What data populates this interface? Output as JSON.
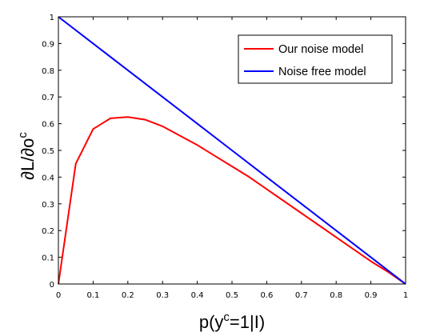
{
  "chart_data": {
    "type": "line",
    "title": "",
    "xlabel": {
      "base": "p(y",
      "sup": "c",
      "rest": "=1|I)"
    },
    "ylabel": {
      "base": "∂L/∂o",
      "sup": "c"
    },
    "xlim": [
      0,
      1
    ],
    "ylim": [
      0,
      1
    ],
    "xticks": [
      0,
      0.1,
      0.2,
      0.3,
      0.4,
      0.5,
      0.6,
      0.7,
      0.8,
      0.9,
      1
    ],
    "yticks": [
      0,
      0.1,
      0.2,
      0.3,
      0.4,
      0.5,
      0.6,
      0.7,
      0.8,
      0.9,
      1
    ],
    "xtick_labels": [
      "0",
      "0.1",
      "0.2",
      "0.3",
      "0.4",
      "0.5",
      "0.6",
      "0.7",
      "0.8",
      "0.9",
      "1"
    ],
    "ytick_labels": [
      "0",
      "0.1",
      "0.2",
      "0.3",
      "0.4",
      "0.5",
      "0.6",
      "0.7",
      "0.8",
      "0.9",
      "1"
    ],
    "grid": false,
    "legend_position": "top-right",
    "series": [
      {
        "name": "Our noise model",
        "color": "#ff0000",
        "x": [
          0,
          0.05,
          0.1,
          0.15,
          0.2,
          0.25,
          0.3,
          0.35,
          0.4,
          0.45,
          0.5,
          0.55,
          0.6,
          0.65,
          0.7,
          0.75,
          0.8,
          0.85,
          0.9,
          0.95,
          1
        ],
        "y": [
          0,
          0.45,
          0.58,
          0.62,
          0.625,
          0.615,
          0.59,
          0.555,
          0.52,
          0.48,
          0.44,
          0.4,
          0.355,
          0.31,
          0.265,
          0.22,
          0.175,
          0.13,
          0.085,
          0.045,
          0
        ]
      },
      {
        "name": "Noise free model",
        "color": "#0000ff",
        "x": [
          0,
          0.1,
          0.2,
          0.3,
          0.4,
          0.5,
          0.6,
          0.7,
          0.8,
          0.9,
          1
        ],
        "y": [
          1,
          0.9,
          0.8,
          0.7,
          0.6,
          0.5,
          0.4,
          0.3,
          0.2,
          0.1,
          0
        ]
      }
    ]
  }
}
